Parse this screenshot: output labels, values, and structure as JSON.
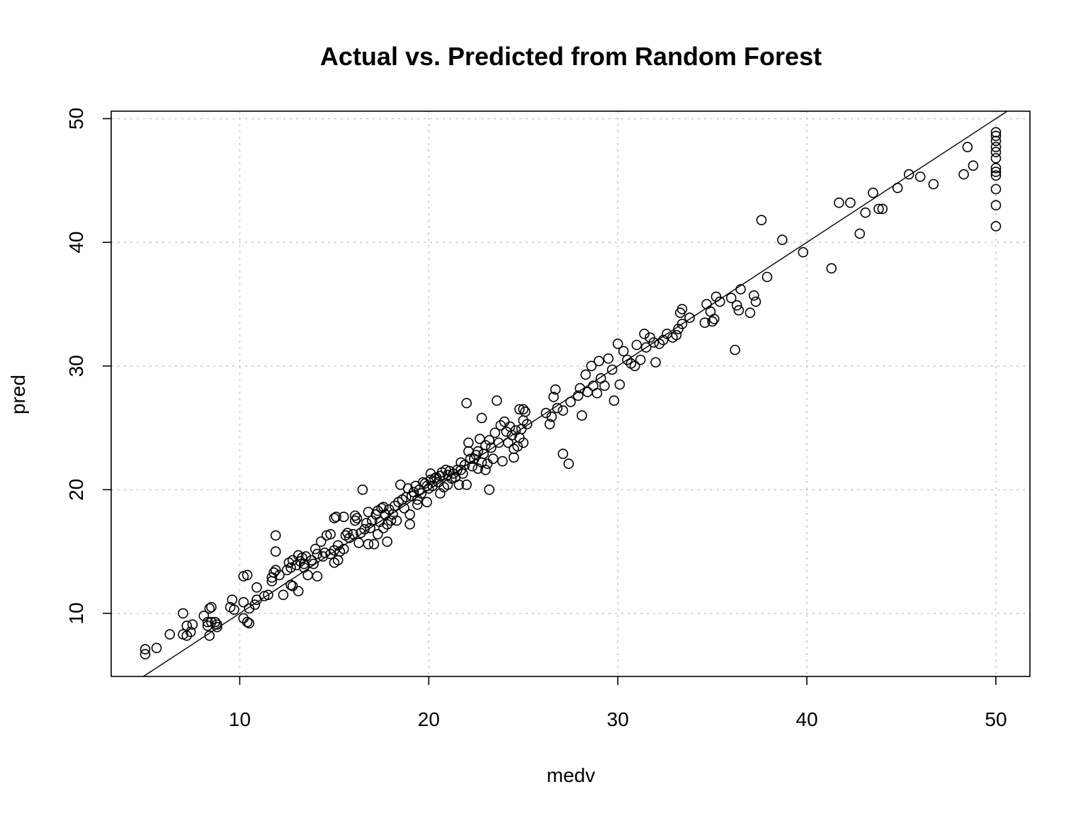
{
  "chart_data": {
    "type": "scatter",
    "title": "Actual vs. Predicted from Random Forest",
    "xlabel": "medv",
    "ylabel": "pred",
    "xlim": [
      3.2,
      51.8
    ],
    "ylim": [
      4.9,
      50.6
    ],
    "xticks": [
      10,
      20,
      30,
      40,
      50
    ],
    "yticks": [
      10,
      20,
      30,
      40,
      50
    ],
    "grid": true,
    "reference_line": {
      "intercept": 0,
      "slope": 1
    },
    "points": [
      [
        5.0,
        6.7
      ],
      [
        5.0,
        7.1
      ],
      [
        5.6,
        7.2
      ],
      [
        6.3,
        8.3
      ],
      [
        7.0,
        8.3
      ],
      [
        7.0,
        10.0
      ],
      [
        7.2,
        8.2
      ],
      [
        7.2,
        9.0
      ],
      [
        7.4,
        8.5
      ],
      [
        7.5,
        9.1
      ],
      [
        8.1,
        9.8
      ],
      [
        8.3,
        9.0
      ],
      [
        8.3,
        9.3
      ],
      [
        8.4,
        10.4
      ],
      [
        8.5,
        10.5
      ],
      [
        8.4,
        8.2
      ],
      [
        8.5,
        9.3
      ],
      [
        8.7,
        9.3
      ],
      [
        8.8,
        8.9
      ],
      [
        8.8,
        9.1
      ],
      [
        9.5,
        10.5
      ],
      [
        9.6,
        11.1
      ],
      [
        9.7,
        10.3
      ],
      [
        10.2,
        10.9
      ],
      [
        10.2,
        9.6
      ],
      [
        10.4,
        13.1
      ],
      [
        10.2,
        13.0
      ],
      [
        10.4,
        9.3
      ],
      [
        10.5,
        9.2
      ],
      [
        10.5,
        10.4
      ],
      [
        10.8,
        10.7
      ],
      [
        10.9,
        11.1
      ],
      [
        10.9,
        12.1
      ],
      [
        11.3,
        11.4
      ],
      [
        11.5,
        11.5
      ],
      [
        11.7,
        12.6
      ],
      [
        11.7,
        12.9
      ],
      [
        11.8,
        13.3
      ],
      [
        11.9,
        13.5
      ],
      [
        11.9,
        15.0
      ],
      [
        11.9,
        16.3
      ],
      [
        12.1,
        13.1
      ],
      [
        12.3,
        11.5
      ],
      [
        12.5,
        13.5
      ],
      [
        12.6,
        14.1
      ],
      [
        12.7,
        13.7
      ],
      [
        12.7,
        12.3
      ],
      [
        12.8,
        14.3
      ],
      [
        12.8,
        12.2
      ],
      [
        13.0,
        13.9
      ],
      [
        13.1,
        14.7
      ],
      [
        13.1,
        11.8
      ],
      [
        13.2,
        14.2
      ],
      [
        13.3,
        14.5
      ],
      [
        13.4,
        13.7
      ],
      [
        13.4,
        14.0
      ],
      [
        13.5,
        14.6
      ],
      [
        13.6,
        13.1
      ],
      [
        13.8,
        14.3
      ],
      [
        13.9,
        14.0
      ],
      [
        14.0,
        15.2
      ],
      [
        14.1,
        14.8
      ],
      [
        14.1,
        13.0
      ],
      [
        14.3,
        15.8
      ],
      [
        14.4,
        14.6
      ],
      [
        14.5,
        14.9
      ],
      [
        14.6,
        16.3
      ],
      [
        14.8,
        16.4
      ],
      [
        14.8,
        14.8
      ],
      [
        15.0,
        15.1
      ],
      [
        15.0,
        14.1
      ],
      [
        15.0,
        17.7
      ],
      [
        15.1,
        17.8
      ],
      [
        15.2,
        14.3
      ],
      [
        15.2,
        15.5
      ],
      [
        15.3,
        15.0
      ],
      [
        15.5,
        17.8
      ],
      [
        15.5,
        15.2
      ],
      [
        15.6,
        16.3
      ],
      [
        15.7,
        16.5
      ],
      [
        15.8,
        16.1
      ],
      [
        16.0,
        16.4
      ],
      [
        16.1,
        17.5
      ],
      [
        16.1,
        17.9
      ],
      [
        16.2,
        17.7
      ],
      [
        16.3,
        15.7
      ],
      [
        16.4,
        16.5
      ],
      [
        16.5,
        20.0
      ],
      [
        16.6,
        16.8
      ],
      [
        16.7,
        17.3
      ],
      [
        16.8,
        18.2
      ],
      [
        16.8,
        15.6
      ],
      [
        16.9,
        16.9
      ],
      [
        17.0,
        17.5
      ],
      [
        17.1,
        15.6
      ],
      [
        17.2,
        18.0
      ],
      [
        17.3,
        18.3
      ],
      [
        17.3,
        16.4
      ],
      [
        17.4,
        17.4
      ],
      [
        17.5,
        18.5
      ],
      [
        17.6,
        18.6
      ],
      [
        17.6,
        16.9
      ],
      [
        17.7,
        18.0
      ],
      [
        17.8,
        15.8
      ],
      [
        17.8,
        17.2
      ],
      [
        17.9,
        18.4
      ],
      [
        18.0,
        17.5
      ],
      [
        18.1,
        18.0
      ],
      [
        18.2,
        18.7
      ],
      [
        18.3,
        17.5
      ],
      [
        18.4,
        19.0
      ],
      [
        18.5,
        20.4
      ],
      [
        18.6,
        19.2
      ],
      [
        18.7,
        18.5
      ],
      [
        18.8,
        19.4
      ],
      [
        18.9,
        20.1
      ],
      [
        19.0,
        17.2
      ],
      [
        19.0,
        18.0
      ],
      [
        19.1,
        19.5
      ],
      [
        19.2,
        19.8
      ],
      [
        19.3,
        20.3
      ],
      [
        19.4,
        18.8
      ],
      [
        19.4,
        19.2
      ],
      [
        19.5,
        20.0
      ],
      [
        19.6,
        19.7
      ],
      [
        19.7,
        20.6
      ],
      [
        19.8,
        20.5
      ],
      [
        19.9,
        19.0
      ],
      [
        19.9,
        20.3
      ],
      [
        20.0,
        20.1
      ],
      [
        20.1,
        20.8
      ],
      [
        20.1,
        21.3
      ],
      [
        20.2,
        20.3
      ],
      [
        20.3,
        20.9
      ],
      [
        20.4,
        21.0
      ],
      [
        20.5,
        20.6
      ],
      [
        20.6,
        21.1
      ],
      [
        20.6,
        19.7
      ],
      [
        20.7,
        21.4
      ],
      [
        20.8,
        20.2
      ],
      [
        20.9,
        21.6
      ],
      [
        21.0,
        21.2
      ],
      [
        21.0,
        20.4
      ],
      [
        21.1,
        21.5
      ],
      [
        21.2,
        20.9
      ],
      [
        21.3,
        21.3
      ],
      [
        21.4,
        21.0
      ],
      [
        21.5,
        21.6
      ],
      [
        21.6,
        20.4
      ],
      [
        21.7,
        22.2
      ],
      [
        21.7,
        21.6
      ],
      [
        21.8,
        21.3
      ],
      [
        21.9,
        22.0
      ],
      [
        22.0,
        27.0
      ],
      [
        22.0,
        20.4
      ],
      [
        22.1,
        23.1
      ],
      [
        22.1,
        23.8
      ],
      [
        22.2,
        22.5
      ],
      [
        22.3,
        21.9
      ],
      [
        22.4,
        22.5
      ],
      [
        22.5,
        22.8
      ],
      [
        22.6,
        21.7
      ],
      [
        22.6,
        23.1
      ],
      [
        22.7,
        24.1
      ],
      [
        22.8,
        25.8
      ],
      [
        22.8,
        22.2
      ],
      [
        22.9,
        22.9
      ],
      [
        23.0,
        23.6
      ],
      [
        23.0,
        21.6
      ],
      [
        23.1,
        22.1
      ],
      [
        23.2,
        20.0
      ],
      [
        23.2,
        24.0
      ],
      [
        23.3,
        23.4
      ],
      [
        23.4,
        22.5
      ],
      [
        23.5,
        24.6
      ],
      [
        23.6,
        27.2
      ],
      [
        23.7,
        23.8
      ],
      [
        23.8,
        25.2
      ],
      [
        23.9,
        22.3
      ],
      [
        24.0,
        25.5
      ],
      [
        24.1,
        24.7
      ],
      [
        24.2,
        23.8
      ],
      [
        24.3,
        25.1
      ],
      [
        24.4,
        24.4
      ],
      [
        24.5,
        23.3
      ],
      [
        24.5,
        22.6
      ],
      [
        24.6,
        24.8
      ],
      [
        24.7,
        23.5
      ],
      [
        24.8,
        24.2
      ],
      [
        24.8,
        26.5
      ],
      [
        24.9,
        24.9
      ],
      [
        25.0,
        25.6
      ],
      [
        25.0,
        26.5
      ],
      [
        25.0,
        23.8
      ],
      [
        25.1,
        26.3
      ],
      [
        25.2,
        25.3
      ],
      [
        26.2,
        26.2
      ],
      [
        26.4,
        25.3
      ],
      [
        26.5,
        25.9
      ],
      [
        26.6,
        27.5
      ],
      [
        26.7,
        28.1
      ],
      [
        26.8,
        26.6
      ],
      [
        27.1,
        22.9
      ],
      [
        27.1,
        26.4
      ],
      [
        27.4,
        22.1
      ],
      [
        27.5,
        27.1
      ],
      [
        27.9,
        27.6
      ],
      [
        28.0,
        28.2
      ],
      [
        28.1,
        26.0
      ],
      [
        28.3,
        29.3
      ],
      [
        28.4,
        27.9
      ],
      [
        28.6,
        30.0
      ],
      [
        28.7,
        28.4
      ],
      [
        28.9,
        27.8
      ],
      [
        29.0,
        30.4
      ],
      [
        29.1,
        29.0
      ],
      [
        29.3,
        28.4
      ],
      [
        29.5,
        30.6
      ],
      [
        29.7,
        29.7
      ],
      [
        29.8,
        27.2
      ],
      [
        30.0,
        31.8
      ],
      [
        30.1,
        28.5
      ],
      [
        30.3,
        31.2
      ],
      [
        30.5,
        30.5
      ],
      [
        30.7,
        30.2
      ],
      [
        30.9,
        30.0
      ],
      [
        31.0,
        31.7
      ],
      [
        31.2,
        30.5
      ],
      [
        31.4,
        32.6
      ],
      [
        31.5,
        31.5
      ],
      [
        31.7,
        32.3
      ],
      [
        31.9,
        31.9
      ],
      [
        32.0,
        30.3
      ],
      [
        32.2,
        31.8
      ],
      [
        32.4,
        32.1
      ],
      [
        32.6,
        32.6
      ],
      [
        32.9,
        32.3
      ],
      [
        33.1,
        32.5
      ],
      [
        33.2,
        33.0
      ],
      [
        33.3,
        34.3
      ],
      [
        33.4,
        34.6
      ],
      [
        33.4,
        33.4
      ],
      [
        33.8,
        33.9
      ],
      [
        34.6,
        33.5
      ],
      [
        34.7,
        35.0
      ],
      [
        34.9,
        34.4
      ],
      [
        35.0,
        33.6
      ],
      [
        35.1,
        33.8
      ],
      [
        35.2,
        35.6
      ],
      [
        35.4,
        35.2
      ],
      [
        36.0,
        35.5
      ],
      [
        36.2,
        31.3
      ],
      [
        36.3,
        34.9
      ],
      [
        36.4,
        34.5
      ],
      [
        36.5,
        36.2
      ],
      [
        37.0,
        34.3
      ],
      [
        37.2,
        35.7
      ],
      [
        37.3,
        35.2
      ],
      [
        37.6,
        41.8
      ],
      [
        37.9,
        37.2
      ],
      [
        38.7,
        40.2
      ],
      [
        39.8,
        39.2
      ],
      [
        41.3,
        37.9
      ],
      [
        41.7,
        43.2
      ],
      [
        42.3,
        43.2
      ],
      [
        42.8,
        40.7
      ],
      [
        43.1,
        42.4
      ],
      [
        43.5,
        44.0
      ],
      [
        43.8,
        42.7
      ],
      [
        44.0,
        42.7
      ],
      [
        44.8,
        44.4
      ],
      [
        45.4,
        45.5
      ],
      [
        46.0,
        45.3
      ],
      [
        46.7,
        44.7
      ],
      [
        48.3,
        45.5
      ],
      [
        48.5,
        47.7
      ],
      [
        48.8,
        46.2
      ],
      [
        50.0,
        48.9
      ],
      [
        50.0,
        48.6
      ],
      [
        50.0,
        48.2
      ],
      [
        50.0,
        47.7
      ],
      [
        50.0,
        47.3
      ],
      [
        50.0,
        46.8
      ],
      [
        50.0,
        46.0
      ],
      [
        50.0,
        45.7
      ],
      [
        50.0,
        45.4
      ],
      [
        50.0,
        44.3
      ],
      [
        50.0,
        43.0
      ],
      [
        50.0,
        41.3
      ]
    ]
  }
}
